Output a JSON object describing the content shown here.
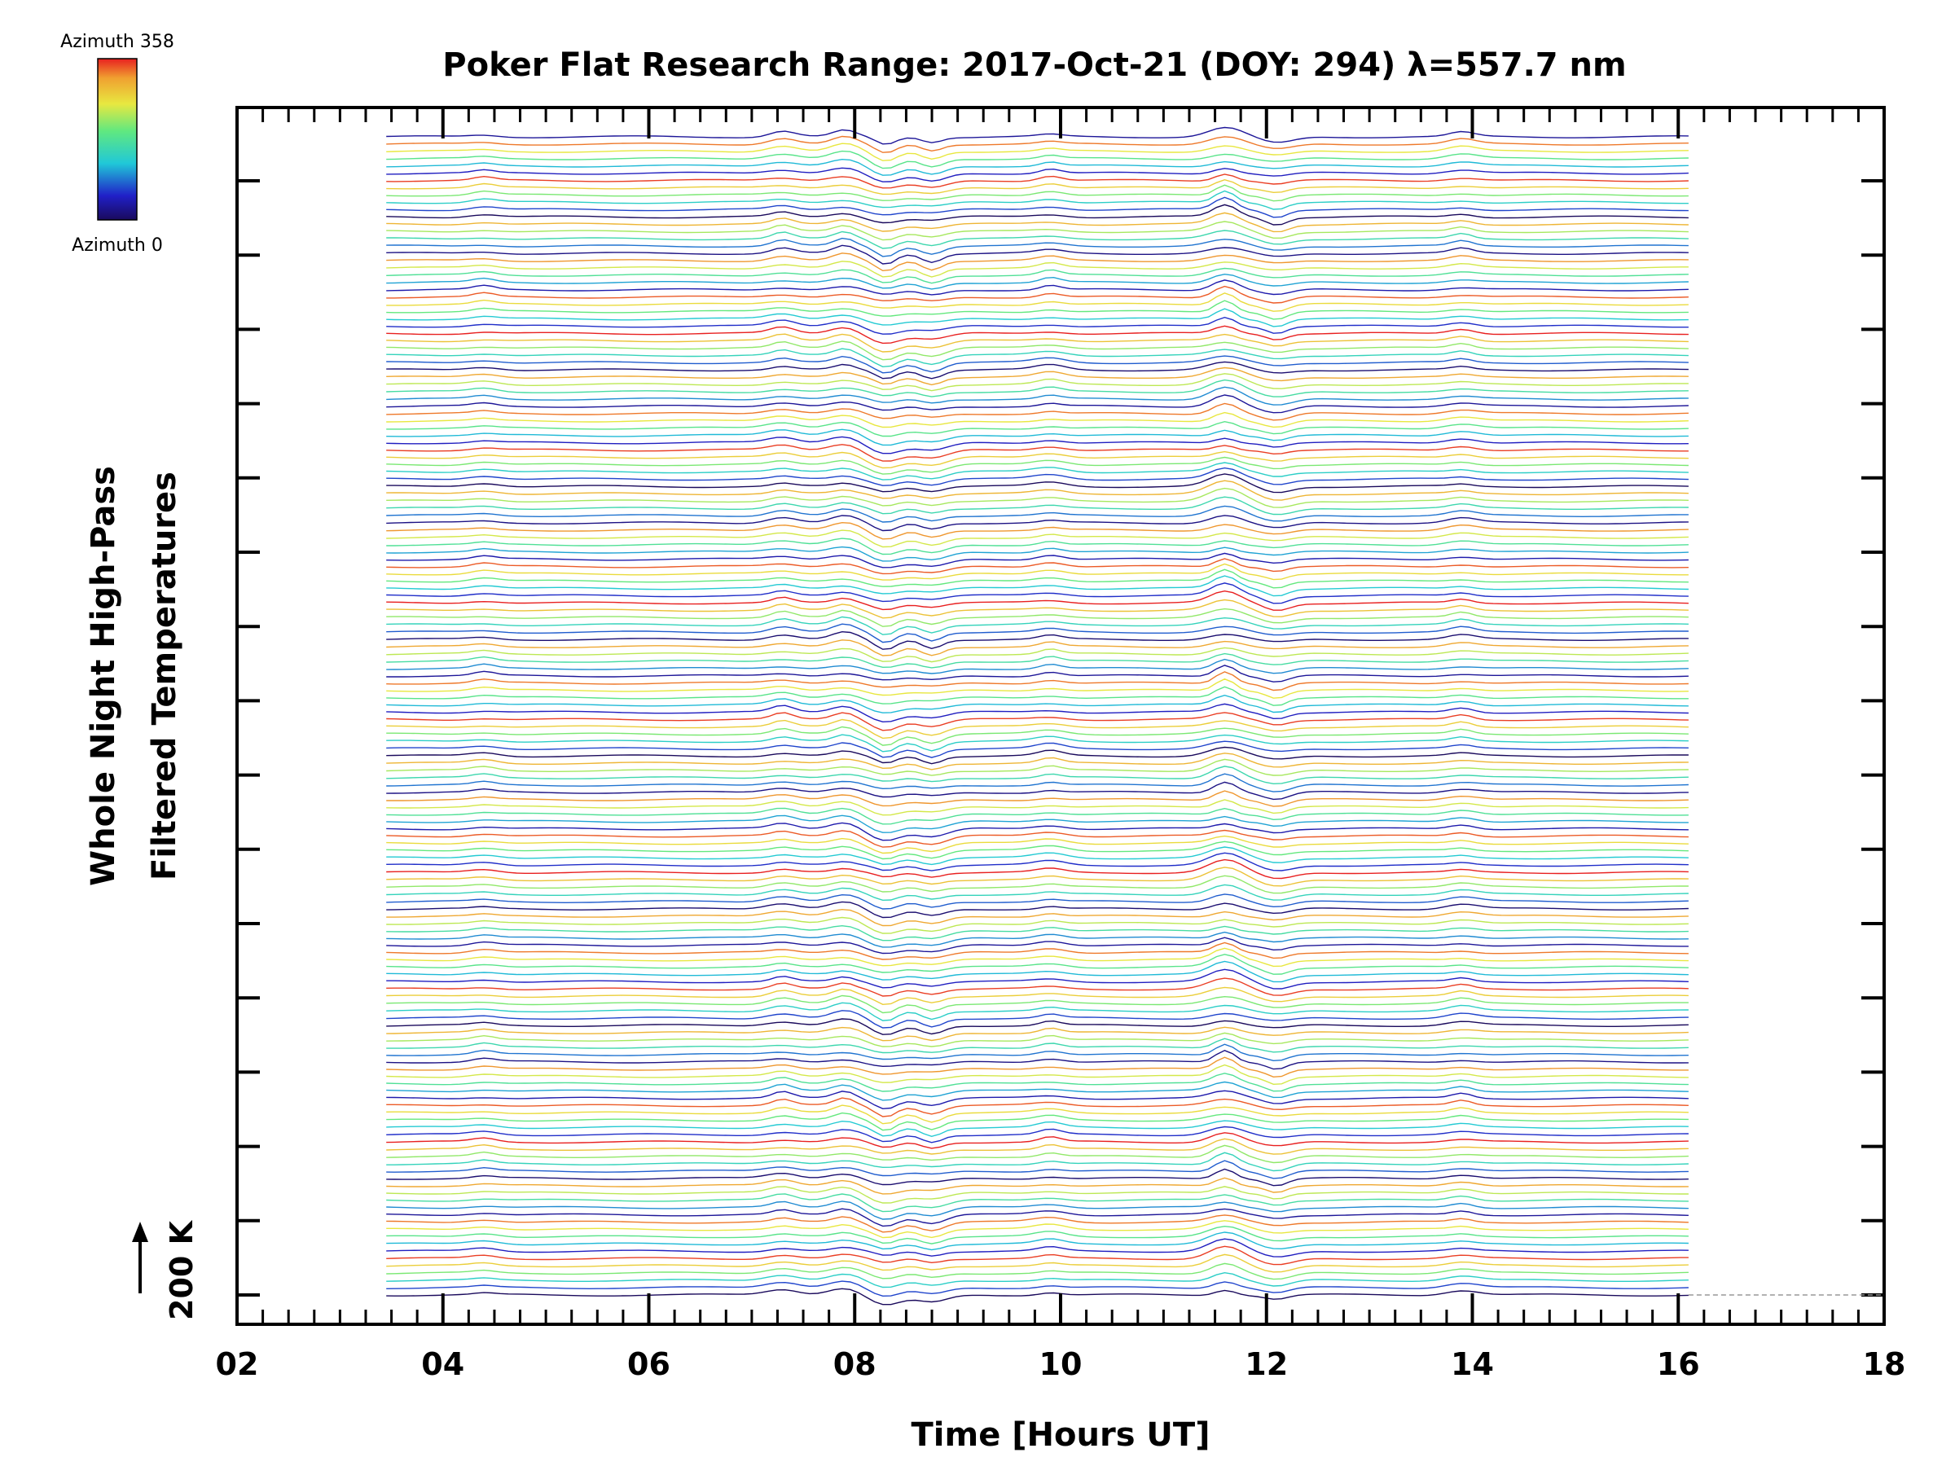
{
  "chart_data": {
    "type": "line",
    "title": "Poker Flat Research Range: 2017-Oct-21 (DOY: 294) λ=557.7 nm",
    "xlabel": "Time [Hours UT]",
    "ylabel_line1": "Whole Night High-Pass",
    "ylabel_line2": "Filtered Temperatures",
    "xlim": [
      2,
      18
    ],
    "x_tick_labels": [
      "02",
      "04",
      "06",
      "08",
      "10",
      "12",
      "14",
      "16",
      "18"
    ],
    "x_ticks": [
      2,
      4,
      6,
      8,
      10,
      12,
      14,
      16,
      18
    ],
    "time_range": [
      3.45,
      16.1
    ],
    "num_traces": 160,
    "azimuth_range": [
      0,
      358
    ],
    "colorbar": {
      "top_label": "Azimuth 358",
      "bottom_label": "Azimuth 0",
      "colormap": "rainbow (blue to red)"
    },
    "scale_bar": {
      "label": "200 K"
    },
    "features": [
      {
        "time": 4.4,
        "amplitude": 0.15
      },
      {
        "time": 7.3,
        "amplitude": 0.25
      },
      {
        "time": 7.9,
        "amplitude": 0.3
      },
      {
        "time": 8.3,
        "amplitude": -0.45
      },
      {
        "time": 8.75,
        "amplitude": -0.35
      },
      {
        "time": 9.9,
        "amplitude": 0.2
      },
      {
        "time": 11.6,
        "amplitude": 0.5
      },
      {
        "time": 12.1,
        "amplitude": -0.3
      },
      {
        "time": 13.9,
        "amplitude": 0.2
      }
    ],
    "grid": false
  }
}
